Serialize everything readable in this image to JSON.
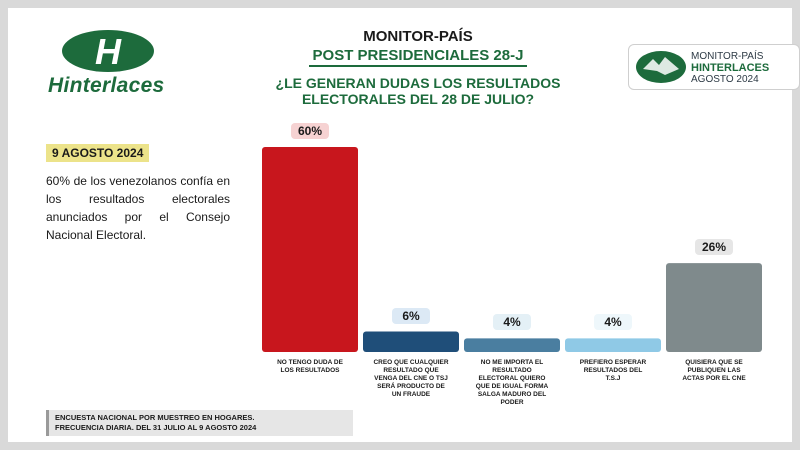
{
  "brand": {
    "name": "Hinterlaces",
    "logo_letter": "H"
  },
  "header": {
    "title": "MONITOR-PAÍS",
    "subtitle": "POST PRESIDENCIALES 28-J",
    "question_line1": "¿LE GENERAN DUDAS LOS RESULTADOS",
    "question_line2": "ELECTORALES DEL 28 DE JULIO?"
  },
  "badge": {
    "line1": "MONITOR-PAÍS",
    "line2": "HINTERLACES",
    "line3": "AGOSTO 2024"
  },
  "date": "9 AGOSTO 2024",
  "description": "60% de los venezolanos confía en los resultados electorales anunciados por el Consejo Nacional Electoral.",
  "footer": {
    "line1": "ENCUESTA NACIONAL POR MUESTREO EN HOGARES.",
    "line2": "FRECUENCIA DIARIA. DEL 31 JULIO AL 9 AGOSTO 2024"
  },
  "chart_data": {
    "type": "bar",
    "unit": "%",
    "categories": [
      [
        "NO TENGO DUDA DE",
        "LOS RESULTADOS"
      ],
      [
        "CREO QUE CUALQUIER",
        "RESULTADO QUE",
        "VENGA DEL CNE O TSJ",
        "SERÁ PRODUCTO DE",
        "UN FRAUDE"
      ],
      [
        "NO ME IMPORTA EL",
        "RESULTADO",
        "ELECTORAL QUIERO",
        "QUE DE IGUAL FORMA",
        "SALGA MADURO DEL",
        "PODER"
      ],
      [
        "PREFIERO ESPERAR",
        "RESULTADOS DEL",
        "T.S.J"
      ],
      [
        "QUISIERA QUE SE",
        "PUBLIQUEN LAS",
        "ACTAS POR EL CNE"
      ]
    ],
    "values": [
      60,
      6,
      4,
      4,
      26
    ],
    "labels": [
      "60%",
      "6%",
      "4%",
      "4%",
      "26%"
    ],
    "colors": [
      "#c8161d",
      "#1f4e79",
      "#4a7ea0",
      "#8fc9e6",
      "#7f8a8c"
    ],
    "label_bg": [
      "#f6d2d2",
      "#dce9f5",
      "#e4f0f6",
      "#eef7fb",
      "#e6e6e6"
    ],
    "ylim": [
      0,
      60
    ]
  }
}
